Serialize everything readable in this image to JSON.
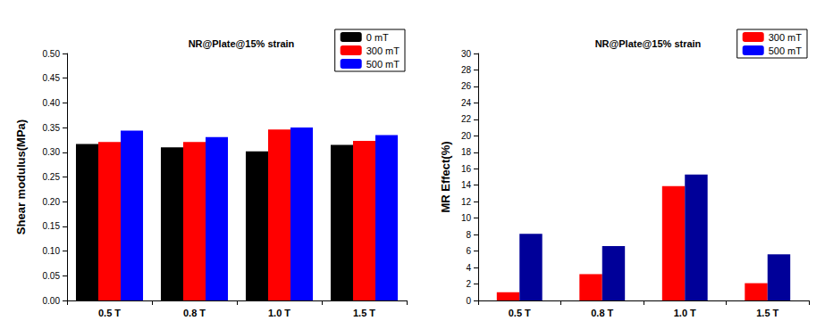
{
  "chart_data": [
    {
      "type": "bar",
      "title": "NR@Plate@15% strain",
      "ylabel": "Shear modulus(MPa)",
      "categories": [
        "0.5 T",
        "0.8 T",
        "1.0 T",
        "1.5 T"
      ],
      "series": [
        {
          "name": "0 mT",
          "color": "#000000",
          "values": [
            0.317,
            0.31,
            0.302,
            0.315
          ]
        },
        {
          "name": "300 mT",
          "color": "#ff0000",
          "values": [
            0.321,
            0.321,
            0.346,
            0.323
          ]
        },
        {
          "name": "500 mT",
          "color": "#0000ff",
          "values": [
            0.344,
            0.331,
            0.35,
            0.335
          ]
        }
      ],
      "ylim": [
        0,
        0.5
      ],
      "yticks": [
        {
          "value": 0,
          "label": "0.00"
        },
        {
          "value": 0.05,
          "label": "0.05"
        },
        {
          "value": 0.1,
          "label": "0.10"
        },
        {
          "value": 0.15,
          "label": "0.15"
        },
        {
          "value": 0.2,
          "label": "0.20"
        },
        {
          "value": 0.25,
          "label": "0.25"
        },
        {
          "value": 0.3,
          "label": "0.30"
        },
        {
          "value": 0.35,
          "label": "0.35"
        },
        {
          "value": 0.4,
          "label": "0.40"
        },
        {
          "value": 0.45,
          "label": "0.45"
        },
        {
          "value": 0.5,
          "label": "0.50"
        }
      ],
      "legend": "upper right"
    },
    {
      "type": "bar",
      "title": "NR@Plate@15% strain",
      "ylabel": "MR Effect(%)",
      "categories": [
        "0.5 T",
        "0.8 T",
        "1.0 T",
        "1.5 T"
      ],
      "series": [
        {
          "name": "300 mT",
          "color": "#ff0000",
          "values": [
            1.0,
            3.2,
            13.9,
            2.1
          ]
        },
        {
          "name": "500 mT",
          "color": "#000099",
          "values": [
            8.1,
            6.6,
            15.3,
            5.6
          ]
        }
      ],
      "ylim": [
        0,
        30
      ],
      "yticks": [
        0,
        2,
        4,
        6,
        8,
        10,
        12,
        14,
        16,
        18,
        20,
        22,
        24,
        26,
        28,
        30
      ],
      "legend": "upper right"
    }
  ]
}
